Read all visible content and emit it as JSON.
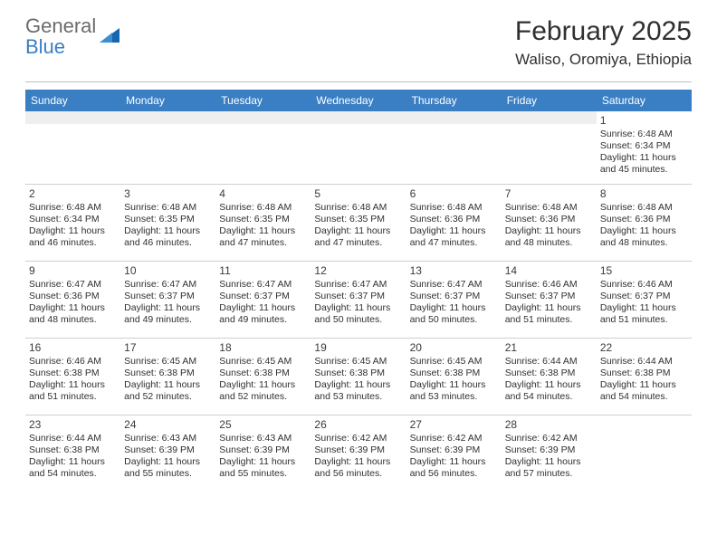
{
  "brand": {
    "word1": "General",
    "word2": "Blue"
  },
  "title": "February 2025",
  "location": "Waliso, Oromiya, Ethiopia",
  "colors": {
    "header_bar": "#3a7fc4",
    "header_text": "#ffffff",
    "rule": "#cfcfcf",
    "empty_bg": "#efefef",
    "text": "#303030",
    "logo_gray": "#6b6b6b"
  },
  "daynames": [
    "Sunday",
    "Monday",
    "Tuesday",
    "Wednesday",
    "Thursday",
    "Friday",
    "Saturday"
  ],
  "weeks": [
    [
      null,
      null,
      null,
      null,
      null,
      null,
      {
        "n": "1",
        "sr": "Sunrise: 6:48 AM",
        "ss": "Sunset: 6:34 PM",
        "dl": "Daylight: 11 hours and 45 minutes."
      }
    ],
    [
      {
        "n": "2",
        "sr": "Sunrise: 6:48 AM",
        "ss": "Sunset: 6:34 PM",
        "dl": "Daylight: 11 hours and 46 minutes."
      },
      {
        "n": "3",
        "sr": "Sunrise: 6:48 AM",
        "ss": "Sunset: 6:35 PM",
        "dl": "Daylight: 11 hours and 46 minutes."
      },
      {
        "n": "4",
        "sr": "Sunrise: 6:48 AM",
        "ss": "Sunset: 6:35 PM",
        "dl": "Daylight: 11 hours and 47 minutes."
      },
      {
        "n": "5",
        "sr": "Sunrise: 6:48 AM",
        "ss": "Sunset: 6:35 PM",
        "dl": "Daylight: 11 hours and 47 minutes."
      },
      {
        "n": "6",
        "sr": "Sunrise: 6:48 AM",
        "ss": "Sunset: 6:36 PM",
        "dl": "Daylight: 11 hours and 47 minutes."
      },
      {
        "n": "7",
        "sr": "Sunrise: 6:48 AM",
        "ss": "Sunset: 6:36 PM",
        "dl": "Daylight: 11 hours and 48 minutes."
      },
      {
        "n": "8",
        "sr": "Sunrise: 6:48 AM",
        "ss": "Sunset: 6:36 PM",
        "dl": "Daylight: 11 hours and 48 minutes."
      }
    ],
    [
      {
        "n": "9",
        "sr": "Sunrise: 6:47 AM",
        "ss": "Sunset: 6:36 PM",
        "dl": "Daylight: 11 hours and 48 minutes."
      },
      {
        "n": "10",
        "sr": "Sunrise: 6:47 AM",
        "ss": "Sunset: 6:37 PM",
        "dl": "Daylight: 11 hours and 49 minutes."
      },
      {
        "n": "11",
        "sr": "Sunrise: 6:47 AM",
        "ss": "Sunset: 6:37 PM",
        "dl": "Daylight: 11 hours and 49 minutes."
      },
      {
        "n": "12",
        "sr": "Sunrise: 6:47 AM",
        "ss": "Sunset: 6:37 PM",
        "dl": "Daylight: 11 hours and 50 minutes."
      },
      {
        "n": "13",
        "sr": "Sunrise: 6:47 AM",
        "ss": "Sunset: 6:37 PM",
        "dl": "Daylight: 11 hours and 50 minutes."
      },
      {
        "n": "14",
        "sr": "Sunrise: 6:46 AM",
        "ss": "Sunset: 6:37 PM",
        "dl": "Daylight: 11 hours and 51 minutes."
      },
      {
        "n": "15",
        "sr": "Sunrise: 6:46 AM",
        "ss": "Sunset: 6:37 PM",
        "dl": "Daylight: 11 hours and 51 minutes."
      }
    ],
    [
      {
        "n": "16",
        "sr": "Sunrise: 6:46 AM",
        "ss": "Sunset: 6:38 PM",
        "dl": "Daylight: 11 hours and 51 minutes."
      },
      {
        "n": "17",
        "sr": "Sunrise: 6:45 AM",
        "ss": "Sunset: 6:38 PM",
        "dl": "Daylight: 11 hours and 52 minutes."
      },
      {
        "n": "18",
        "sr": "Sunrise: 6:45 AM",
        "ss": "Sunset: 6:38 PM",
        "dl": "Daylight: 11 hours and 52 minutes."
      },
      {
        "n": "19",
        "sr": "Sunrise: 6:45 AM",
        "ss": "Sunset: 6:38 PM",
        "dl": "Daylight: 11 hours and 53 minutes."
      },
      {
        "n": "20",
        "sr": "Sunrise: 6:45 AM",
        "ss": "Sunset: 6:38 PM",
        "dl": "Daylight: 11 hours and 53 minutes."
      },
      {
        "n": "21",
        "sr": "Sunrise: 6:44 AM",
        "ss": "Sunset: 6:38 PM",
        "dl": "Daylight: 11 hours and 54 minutes."
      },
      {
        "n": "22",
        "sr": "Sunrise: 6:44 AM",
        "ss": "Sunset: 6:38 PM",
        "dl": "Daylight: 11 hours and 54 minutes."
      }
    ],
    [
      {
        "n": "23",
        "sr": "Sunrise: 6:44 AM",
        "ss": "Sunset: 6:38 PM",
        "dl": "Daylight: 11 hours and 54 minutes."
      },
      {
        "n": "24",
        "sr": "Sunrise: 6:43 AM",
        "ss": "Sunset: 6:39 PM",
        "dl": "Daylight: 11 hours and 55 minutes."
      },
      {
        "n": "25",
        "sr": "Sunrise: 6:43 AM",
        "ss": "Sunset: 6:39 PM",
        "dl": "Daylight: 11 hours and 55 minutes."
      },
      {
        "n": "26",
        "sr": "Sunrise: 6:42 AM",
        "ss": "Sunset: 6:39 PM",
        "dl": "Daylight: 11 hours and 56 minutes."
      },
      {
        "n": "27",
        "sr": "Sunrise: 6:42 AM",
        "ss": "Sunset: 6:39 PM",
        "dl": "Daylight: 11 hours and 56 minutes."
      },
      {
        "n": "28",
        "sr": "Sunrise: 6:42 AM",
        "ss": "Sunset: 6:39 PM",
        "dl": "Daylight: 11 hours and 57 minutes."
      },
      null
    ]
  ]
}
